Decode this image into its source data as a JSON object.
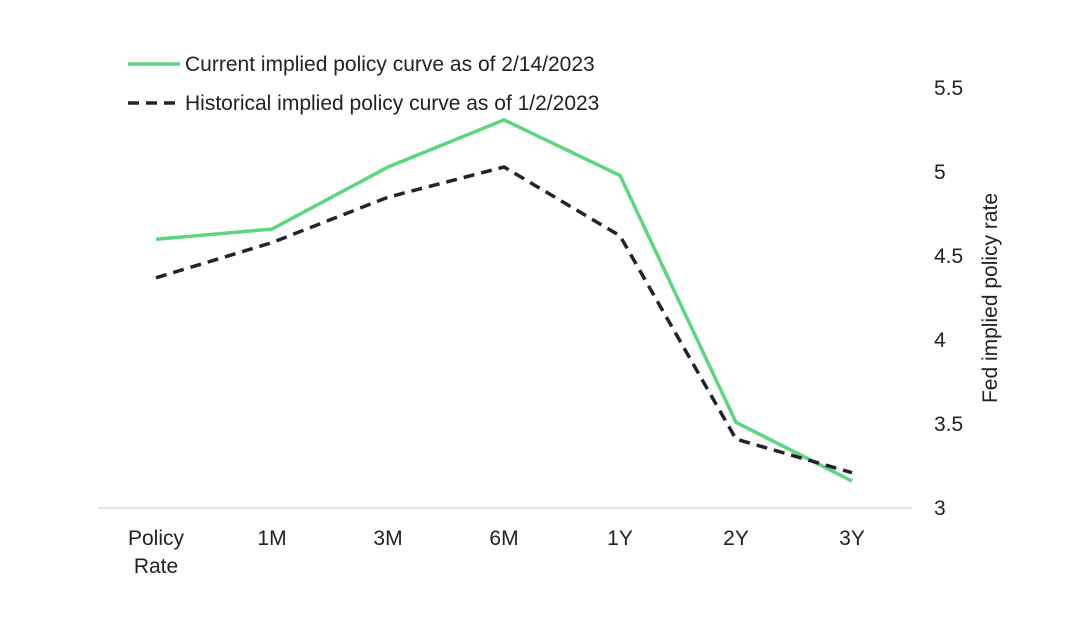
{
  "chart_data": {
    "type": "line",
    "title": "",
    "xlabel": "",
    "ylabel": "Fed implied policy rate",
    "ylim": [
      3,
      5.5
    ],
    "yticks": [
      "3",
      "3.5",
      "4",
      "4.5",
      "5",
      "5.5"
    ],
    "grid": false,
    "legend_position": "top-left",
    "categories": [
      [
        "Policy",
        "Rate"
      ],
      [
        "1M"
      ],
      [
        "3M"
      ],
      [
        "6M"
      ],
      [
        "1Y"
      ],
      [
        "2Y"
      ],
      [
        "3Y"
      ]
    ],
    "series": [
      {
        "name": "Current implied policy curve as of 2/14/2023",
        "color": "#5cd67f",
        "style": "solid",
        "values": [
          4.6,
          4.66,
          5.03,
          5.31,
          4.98,
          3.51,
          3.16
        ]
      },
      {
        "name": "Historical implied policy curve as of 1/2/2023",
        "color": "#23232f",
        "style": "dashed",
        "values": [
          4.37,
          4.58,
          4.85,
          5.03,
          4.62,
          3.41,
          3.21
        ]
      }
    ]
  }
}
